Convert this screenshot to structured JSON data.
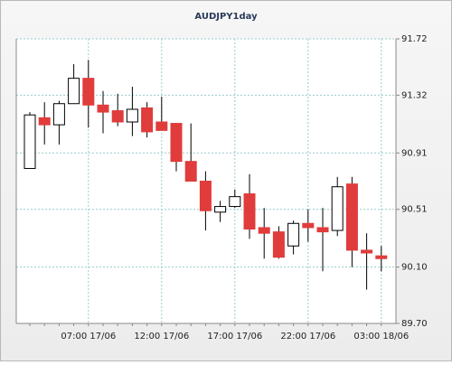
{
  "chart_data": {
    "type": "candlestick",
    "title": "AUDJPY1day",
    "categories": [
      "",
      null,
      null,
      null,
      "07:00 17/06",
      null,
      null,
      null,
      null,
      "12:00 17/06",
      null,
      null,
      null,
      null,
      "17:00 17/06",
      null,
      null,
      null,
      null,
      "22:00 17/06",
      null,
      null,
      null,
      null,
      "03:00 18/06"
    ],
    "open": [
      90.8,
      91.16,
      91.11,
      91.26,
      91.44,
      91.25,
      91.21,
      91.13,
      91.23,
      91.13,
      91.12,
      90.85,
      90.71,
      90.49,
      90.53,
      90.62,
      90.38,
      90.35,
      90.25,
      90.41,
      90.38,
      90.36,
      90.69,
      90.22,
      90.18
    ],
    "high": [
      91.2,
      91.27,
      91.28,
      91.54,
      91.57,
      91.35,
      91.33,
      91.38,
      91.27,
      91.31,
      91.12,
      91.12,
      90.78,
      90.57,
      90.65,
      90.76,
      90.52,
      90.39,
      90.43,
      90.51,
      90.52,
      90.74,
      90.74,
      90.34,
      90.25
    ],
    "low": [
      90.8,
      90.97,
      90.97,
      91.26,
      91.09,
      91.05,
      91.1,
      91.03,
      91.02,
      91.07,
      90.78,
      90.71,
      90.36,
      90.42,
      90.52,
      90.3,
      90.16,
      90.16,
      90.19,
      90.28,
      90.07,
      90.32,
      90.1,
      89.94,
      90.07
    ],
    "close": [
      91.18,
      91.11,
      91.26,
      91.44,
      91.25,
      91.2,
      91.13,
      91.22,
      91.06,
      91.07,
      90.85,
      90.71,
      90.5,
      90.53,
      90.6,
      90.37,
      90.34,
      90.17,
      90.41,
      90.38,
      90.35,
      90.67,
      90.22,
      90.2,
      90.16
    ],
    "up_color": "#ffffff",
    "down_color": "#e03c3c",
    "ylim": [
      89.7,
      91.72
    ],
    "yticks": [
      {
        "value": 89.7,
        "label": "89.70"
      },
      {
        "value": 90.1,
        "label": "90.10"
      },
      90.51,
      90.91,
      91.32,
      91.72
    ],
    "grid": true
  }
}
